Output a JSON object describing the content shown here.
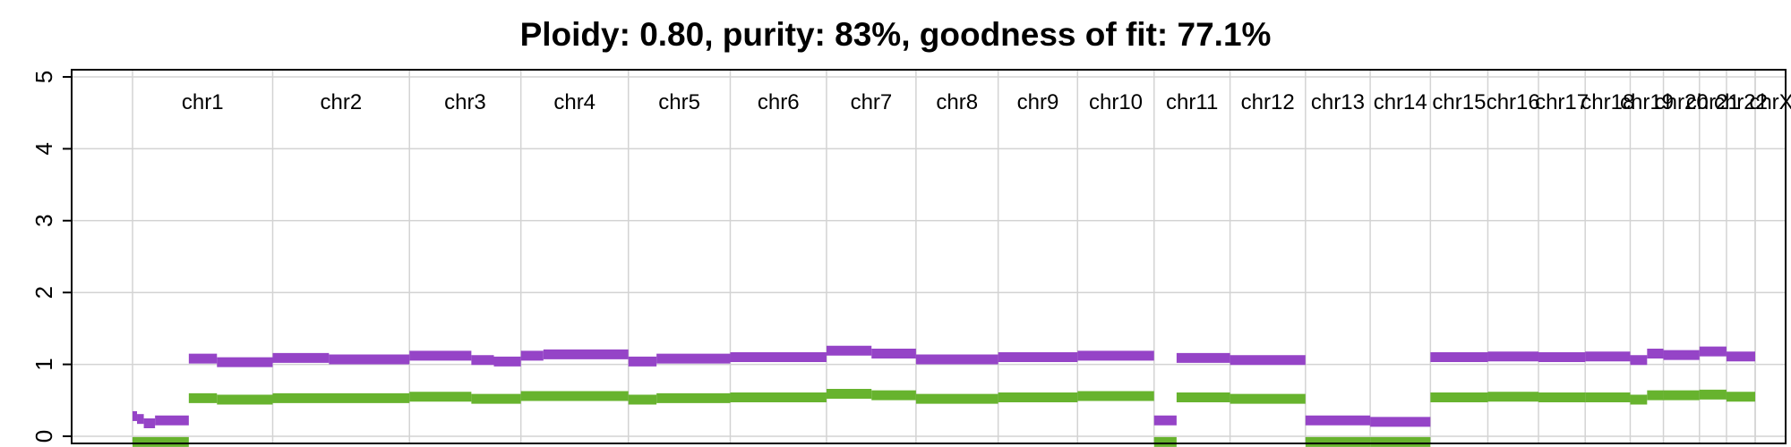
{
  "chart_data": {
    "type": "line",
    "title": "Ploidy: 0.80, purity: 83%, goodness of fit: 77.1%",
    "xlabel": "",
    "ylabel": "",
    "ylim": [
      -0.1,
      5.1
    ],
    "y_ticks": [
      0,
      1,
      2,
      3,
      4,
      5
    ],
    "grid": true,
    "colors": {
      "total": "#9544c7",
      "minor": "#67b32e",
      "grid": "#d3d3d3",
      "axis": "#000000"
    },
    "chromosomes": [
      {
        "name": "chr1",
        "size": 249
      },
      {
        "name": "chr2",
        "size": 243
      },
      {
        "name": "chr3",
        "size": 198
      },
      {
        "name": "chr4",
        "size": 191
      },
      {
        "name": "chr5",
        "size": 181
      },
      {
        "name": "chr6",
        "size": 171
      },
      {
        "name": "chr7",
        "size": 159
      },
      {
        "name": "chr8",
        "size": 146
      },
      {
        "name": "chr9",
        "size": 141
      },
      {
        "name": "chr10",
        "size": 136
      },
      {
        "name": "chr11",
        "size": 135
      },
      {
        "name": "chr12",
        "size": 134
      },
      {
        "name": "chr13",
        "size": 115
      },
      {
        "name": "chr14",
        "size": 107
      },
      {
        "name": "chr15",
        "size": 102
      },
      {
        "name": "chr16",
        "size": 90
      },
      {
        "name": "chr17",
        "size": 83
      },
      {
        "name": "chr18",
        "size": 80
      },
      {
        "name": "chr19",
        "size": 59
      },
      {
        "name": "chr20",
        "size": 64
      },
      {
        "name": "chr21",
        "size": 48
      },
      {
        "name": "chr22",
        "size": 51
      },
      {
        "name": "chrX",
        "size": 0
      }
    ],
    "series": [
      {
        "color": "#9544c7",
        "segments": [
          {
            "chr": "chr1",
            "start": 0,
            "end": 8,
            "value": 0.28
          },
          {
            "chr": "chr1",
            "start": 8,
            "end": 20,
            "value": 0.24
          },
          {
            "chr": "chr1",
            "start": 20,
            "end": 40,
            "value": 0.18
          },
          {
            "chr": "chr1",
            "start": 40,
            "end": 100,
            "value": 0.22
          },
          {
            "chr": "chr1",
            "start": 100,
            "end": 150,
            "value": 1.08
          },
          {
            "chr": "chr1",
            "start": 150,
            "end": 249,
            "value": 1.03
          },
          {
            "chr": "chr2",
            "start": 0,
            "end": 100,
            "value": 1.09
          },
          {
            "chr": "chr2",
            "start": 100,
            "end": 243,
            "value": 1.07
          },
          {
            "chr": "chr3",
            "start": 0,
            "end": 110,
            "value": 1.12
          },
          {
            "chr": "chr3",
            "start": 110,
            "end": 150,
            "value": 1.06
          },
          {
            "chr": "chr3",
            "start": 150,
            "end": 198,
            "value": 1.04
          },
          {
            "chr": "chr4",
            "start": 0,
            "end": 40,
            "value": 1.12
          },
          {
            "chr": "chr4",
            "start": 40,
            "end": 191,
            "value": 1.14
          },
          {
            "chr": "chr5",
            "start": 0,
            "end": 50,
            "value": 1.04
          },
          {
            "chr": "chr5",
            "start": 50,
            "end": 181,
            "value": 1.08
          },
          {
            "chr": "chr6",
            "start": 0,
            "end": 171,
            "value": 1.1
          },
          {
            "chr": "chr7",
            "start": 0,
            "end": 80,
            "value": 1.19
          },
          {
            "chr": "chr7",
            "start": 80,
            "end": 159,
            "value": 1.15
          },
          {
            "chr": "chr8",
            "start": 0,
            "end": 146,
            "value": 1.07
          },
          {
            "chr": "chr9",
            "start": 0,
            "end": 141,
            "value": 1.1
          },
          {
            "chr": "chr10",
            "start": 0,
            "end": 136,
            "value": 1.12
          },
          {
            "chr": "chr11",
            "start": 0,
            "end": 40,
            "value": 0.22
          },
          {
            "chr": "chr11",
            "start": 40,
            "end": 135,
            "value": 1.09
          },
          {
            "chr": "chr12",
            "start": 0,
            "end": 134,
            "value": 1.06
          },
          {
            "chr": "chr13",
            "start": 0,
            "end": 115,
            "value": 0.22
          },
          {
            "chr": "chr14",
            "start": 0,
            "end": 107,
            "value": 0.2
          },
          {
            "chr": "chr15",
            "start": 0,
            "end": 102,
            "value": 1.1
          },
          {
            "chr": "chr16",
            "start": 0,
            "end": 90,
            "value": 1.11
          },
          {
            "chr": "chr17",
            "start": 0,
            "end": 83,
            "value": 1.1
          },
          {
            "chr": "chr18",
            "start": 0,
            "end": 80,
            "value": 1.11
          },
          {
            "chr": "chr19",
            "start": 0,
            "end": 30,
            "value": 1.06
          },
          {
            "chr": "chr19",
            "start": 30,
            "end": 59,
            "value": 1.15
          },
          {
            "chr": "chr20",
            "start": 0,
            "end": 64,
            "value": 1.13
          },
          {
            "chr": "chr21",
            "start": 0,
            "end": 48,
            "value": 1.18
          },
          {
            "chr": "chr22",
            "start": 0,
            "end": 51,
            "value": 1.11
          }
        ]
      },
      {
        "color": "#67b32e",
        "segments": [
          {
            "chr": "chr1",
            "start": 0,
            "end": 100,
            "value": -0.08
          },
          {
            "chr": "chr1",
            "start": 100,
            "end": 150,
            "value": 0.53
          },
          {
            "chr": "chr1",
            "start": 150,
            "end": 249,
            "value": 0.51
          },
          {
            "chr": "chr2",
            "start": 0,
            "end": 243,
            "value": 0.53
          },
          {
            "chr": "chr3",
            "start": 0,
            "end": 110,
            "value": 0.55
          },
          {
            "chr": "chr3",
            "start": 110,
            "end": 198,
            "value": 0.52
          },
          {
            "chr": "chr4",
            "start": 0,
            "end": 191,
            "value": 0.56
          },
          {
            "chr": "chr5",
            "start": 0,
            "end": 50,
            "value": 0.51
          },
          {
            "chr": "chr5",
            "start": 50,
            "end": 181,
            "value": 0.53
          },
          {
            "chr": "chr6",
            "start": 0,
            "end": 171,
            "value": 0.54
          },
          {
            "chr": "chr7",
            "start": 0,
            "end": 80,
            "value": 0.59
          },
          {
            "chr": "chr7",
            "start": 80,
            "end": 159,
            "value": 0.57
          },
          {
            "chr": "chr8",
            "start": 0,
            "end": 146,
            "value": 0.52
          },
          {
            "chr": "chr9",
            "start": 0,
            "end": 141,
            "value": 0.54
          },
          {
            "chr": "chr10",
            "start": 0,
            "end": 136,
            "value": 0.56
          },
          {
            "chr": "chr11",
            "start": 0,
            "end": 40,
            "value": -0.08
          },
          {
            "chr": "chr11",
            "start": 40,
            "end": 135,
            "value": 0.54
          },
          {
            "chr": "chr12",
            "start": 0,
            "end": 134,
            "value": 0.52
          },
          {
            "chr": "chr13",
            "start": 0,
            "end": 115,
            "value": -0.08
          },
          {
            "chr": "chr14",
            "start": 0,
            "end": 107,
            "value": -0.08
          },
          {
            "chr": "chr15",
            "start": 0,
            "end": 102,
            "value": 0.54
          },
          {
            "chr": "chr16",
            "start": 0,
            "end": 90,
            "value": 0.55
          },
          {
            "chr": "chr17",
            "start": 0,
            "end": 83,
            "value": 0.54
          },
          {
            "chr": "chr18",
            "start": 0,
            "end": 80,
            "value": 0.54
          },
          {
            "chr": "chr19",
            "start": 0,
            "end": 30,
            "value": 0.51
          },
          {
            "chr": "chr19",
            "start": 30,
            "end": 59,
            "value": 0.57
          },
          {
            "chr": "chr20",
            "start": 0,
            "end": 64,
            "value": 0.57
          },
          {
            "chr": "chr21",
            "start": 0,
            "end": 48,
            "value": 0.58
          },
          {
            "chr": "chr22",
            "start": 0,
            "end": 51,
            "value": 0.55
          }
        ]
      }
    ]
  }
}
